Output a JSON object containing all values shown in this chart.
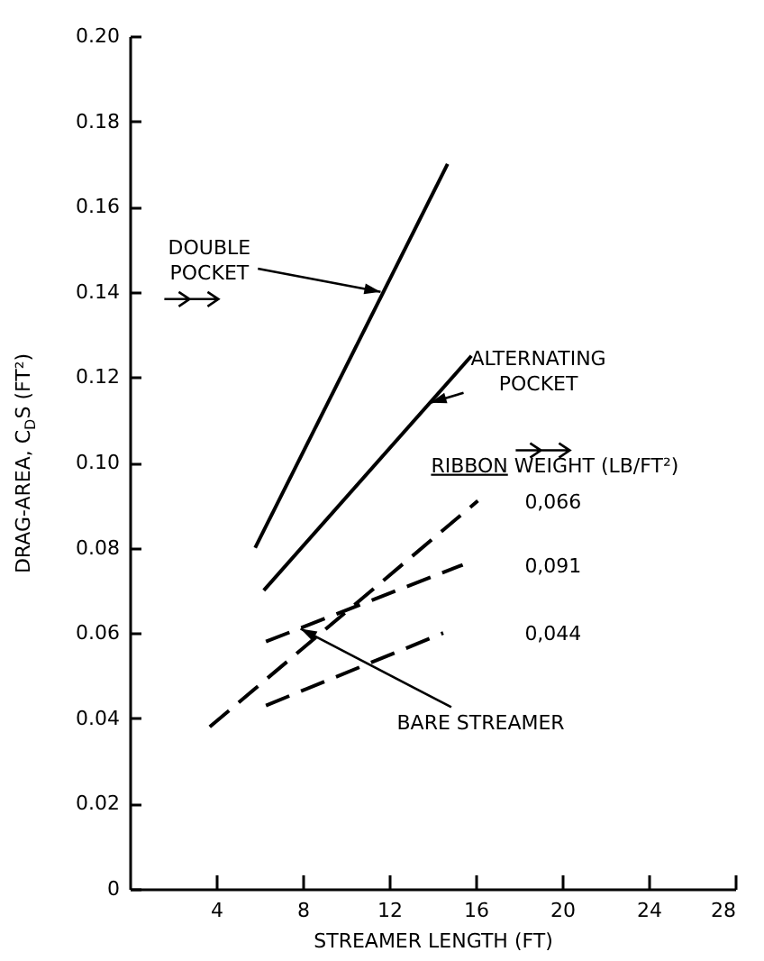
{
  "chart_data": {
    "type": "line",
    "xlabel": "STREAMER LENGTH (FT)",
    "ylabel": "DRAG-AREA, C$_{D}$S (FT²)",
    "legend_title": "RIBBON WEIGHT (LB/FT²)",
    "xlim": [
      0,
      28
    ],
    "xticks": [
      4,
      8,
      12,
      16,
      20,
      24,
      28
    ],
    "ylim": [
      0,
      0.2
    ],
    "yticks": [
      0,
      {
        "value": 0.02,
        "label": "0.02"
      },
      {
        "value": 0.04,
        "label": "0.04"
      },
      {
        "value": 0.06,
        "label": "0.06"
      },
      {
        "value": 0.08,
        "label": "0.08"
      },
      {
        "value": 0.1,
        "label": "0.10"
      },
      {
        "value": 0.12,
        "label": "0.12"
      },
      {
        "value": 0.14,
        "label": "0.14"
      },
      {
        "value": 0.16,
        "label": "0.16"
      },
      {
        "value": 0.18,
        "label": "0.18"
      },
      {
        "value": 0.2,
        "label": "0.20"
      }
    ],
    "grid": false,
    "annotations": [
      {
        "text": "DOUBLE POCKET",
        "x": 11.6,
        "y": 0.14
      },
      {
        "text": "ALTERNATING POCKET",
        "x": 13.9,
        "y": 0.114
      },
      {
        "text": "BARE STREAMER",
        "x": 7.9,
        "y": 0.061
      }
    ],
    "series": [
      {
        "color": "#000000",
        "line_style": "solid",
        "x": [
          5.8,
          14.7
        ],
        "values": [
          0.08,
          0.17
        ]
      },
      {
        "color": "#000000",
        "line_style": "solid",
        "x": [
          6.2,
          15.8
        ],
        "values": [
          0.07,
          0.125
        ]
      },
      {
        "name": "0,066",
        "color": "#000000",
        "line_style": "dashed",
        "x": [
          3.7,
          16.1
        ],
        "values": [
          0.038,
          0.091
        ]
      },
      {
        "name": "0,091",
        "color": "#000000",
        "line_style": "dashed",
        "x": [
          6.3,
          15.4
        ],
        "values": [
          0.058,
          0.076
        ]
      },
      {
        "name": "0,044",
        "color": "#000000",
        "line_style": "dashed",
        "x": [
          6.3,
          14.5
        ],
        "values": [
          0.043,
          0.06
        ]
      }
    ]
  }
}
